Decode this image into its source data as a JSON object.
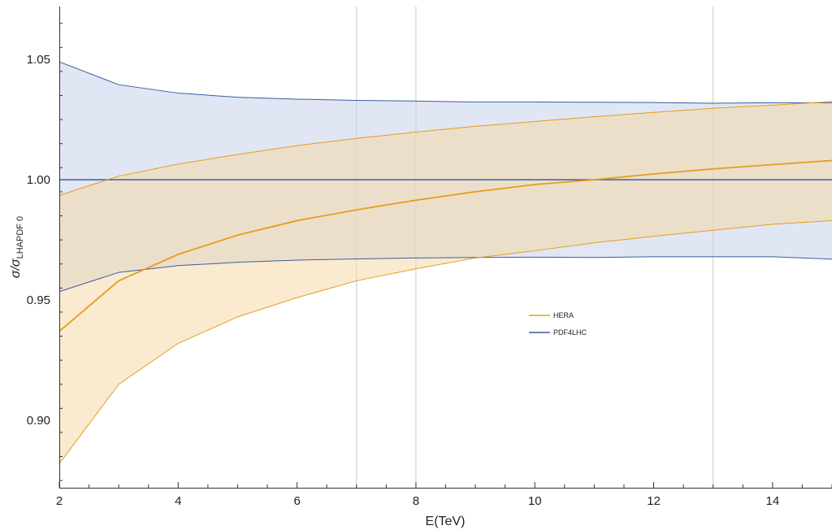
{
  "chart_data": {
    "type": "area",
    "xlabel": "E(TeV)",
    "ylabel": {
      "main": "σ/σ",
      "sub": "LHAPDF 0"
    },
    "xlim": [
      2,
      15
    ],
    "ylim": [
      0.872,
      1.072
    ],
    "x_ticks": [
      2,
      4,
      6,
      8,
      10,
      12,
      14
    ],
    "x_tick_labels": [
      "2",
      "4",
      "6",
      "8",
      "10",
      "12",
      "14"
    ],
    "y_ticks": [
      0.9,
      0.95,
      1.0,
      1.05
    ],
    "y_tick_labels": [
      "0.90",
      "0.95",
      "1.00",
      "1.05"
    ],
    "vertical_gridlines": [
      7,
      8,
      13
    ],
    "legend_position": "center-right",
    "series": [
      {
        "name": "PDF4LHC",
        "color": "#3a5f9e",
        "fill_color": "#c6d1ea",
        "x": [
          2,
          3,
          4,
          5,
          6,
          7,
          8,
          9,
          10,
          11,
          12,
          13,
          14,
          15
        ],
        "central": [
          1.0,
          1.0,
          1.0,
          1.0,
          1.0,
          1.0,
          1.0,
          1.0,
          1.0,
          1.0,
          1.0,
          1.0,
          1.0,
          1.0
        ],
        "upper": [
          1.049,
          1.0395,
          1.036,
          1.0343,
          1.0335,
          1.033,
          1.0327,
          1.0323,
          1.0323,
          1.0322,
          1.0321,
          1.0318,
          1.032,
          1.032
        ],
        "lower": [
          0.9535,
          0.9615,
          0.9643,
          0.9657,
          0.9666,
          0.9671,
          0.9675,
          0.9677,
          0.9678,
          0.9677,
          0.968,
          0.968,
          0.968,
          0.967
        ]
      },
      {
        "name": "HERA",
        "color": "#e49e1b",
        "fill_color": "#f5d9a8",
        "x": [
          2,
          3,
          4,
          5,
          6,
          7,
          8,
          9,
          10,
          11,
          12,
          13,
          14,
          15
        ],
        "central": [
          0.937,
          0.958,
          0.969,
          0.977,
          0.983,
          0.9875,
          0.9915,
          0.995,
          0.998,
          1.0,
          1.0024,
          1.0045,
          1.0063,
          1.008
        ],
        "upper": [
          0.9935,
          1.0015,
          1.0065,
          1.0105,
          1.0142,
          1.0172,
          1.0198,
          1.0222,
          1.0242,
          1.0262,
          1.028,
          1.0297,
          1.031,
          1.0325
        ],
        "lower": [
          0.882,
          0.915,
          0.932,
          0.943,
          0.951,
          0.958,
          0.963,
          0.9675,
          0.9705,
          0.9738,
          0.9765,
          0.979,
          0.9815,
          0.983
        ]
      }
    ]
  }
}
